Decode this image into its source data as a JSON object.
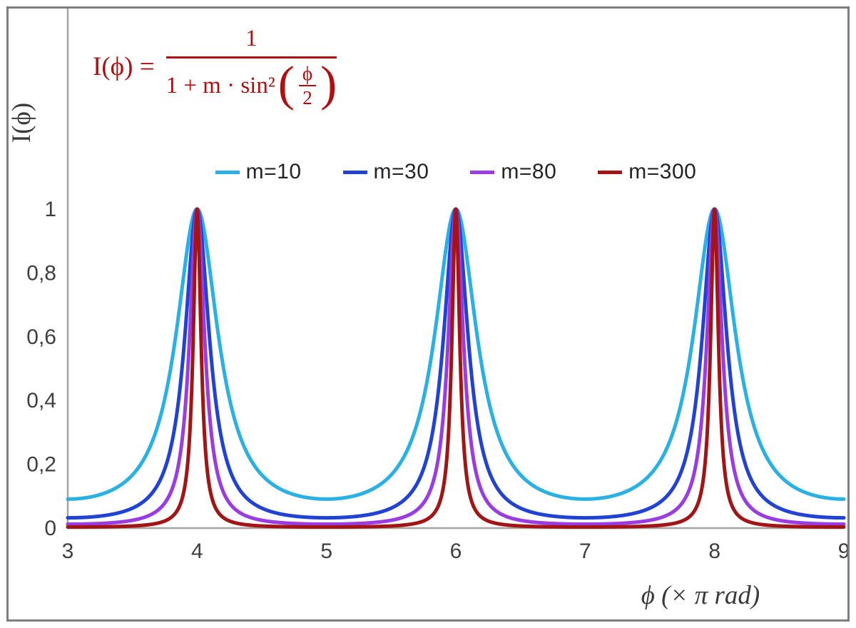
{
  "figure": {
    "background": "#FFFFFF",
    "border_color": "#7F7F7F"
  },
  "formula": {
    "lhs": "I(ϕ) =",
    "numerator": "1",
    "den_prefix": "1 + m · sin²",
    "paren_open": "(",
    "paren_close": ")",
    "inner_numerator": "ϕ",
    "inner_denominator": "2",
    "color": "#B30D0D"
  },
  "axes": {
    "x_label": "ϕ (× π rad)",
    "y_label": "I(ϕ)",
    "axis_color": "#A3A3A3",
    "tick_label_color": "#3F3F3F",
    "title_color": "#3A3A3A"
  },
  "chart_data": {
    "type": "line",
    "title": "",
    "formula": "I(ϕ) = 1 / (1 + m·sin²(ϕ/2)), ϕ expressed in multiples of π rad",
    "xlabel": "ϕ (× π rad)",
    "ylabel": "I(ϕ)",
    "x_range": [
      3,
      9
    ],
    "y_range": [
      0,
      1
    ],
    "grid": false,
    "legend_position": "top",
    "x_ticks": [
      {
        "value": 3,
        "label": "3"
      },
      {
        "value": 4,
        "label": "4"
      },
      {
        "value": 5,
        "label": "5"
      },
      {
        "value": 6,
        "label": "6"
      },
      {
        "value": 7,
        "label": "7"
      },
      {
        "value": 8,
        "label": "8"
      },
      {
        "value": 9,
        "label": "9"
      }
    ],
    "y_ticks": [
      {
        "value": 0,
        "label": "0"
      },
      {
        "value": 0.2,
        "label": "0,2"
      },
      {
        "value": 0.4,
        "label": "0,4"
      },
      {
        "value": 0.6,
        "label": "0,6"
      },
      {
        "value": 0.8,
        "label": "0,8"
      },
      {
        "value": 1,
        "label": "1"
      }
    ],
    "peaks_at_x": [
      4,
      6,
      8
    ],
    "peak_value": 1,
    "series": [
      {
        "name": "m=10",
        "m": 10,
        "color": "#29B1E6",
        "min_value": 0.0909
      },
      {
        "name": "m=30",
        "m": 30,
        "color": "#2142D6",
        "min_value": 0.0323
      },
      {
        "name": "m=80",
        "m": 80,
        "color": "#9A3BE4",
        "min_value": 0.0123
      },
      {
        "name": "m=300",
        "m": 300,
        "color": "#A31414",
        "min_value": 0.0033
      }
    ]
  }
}
